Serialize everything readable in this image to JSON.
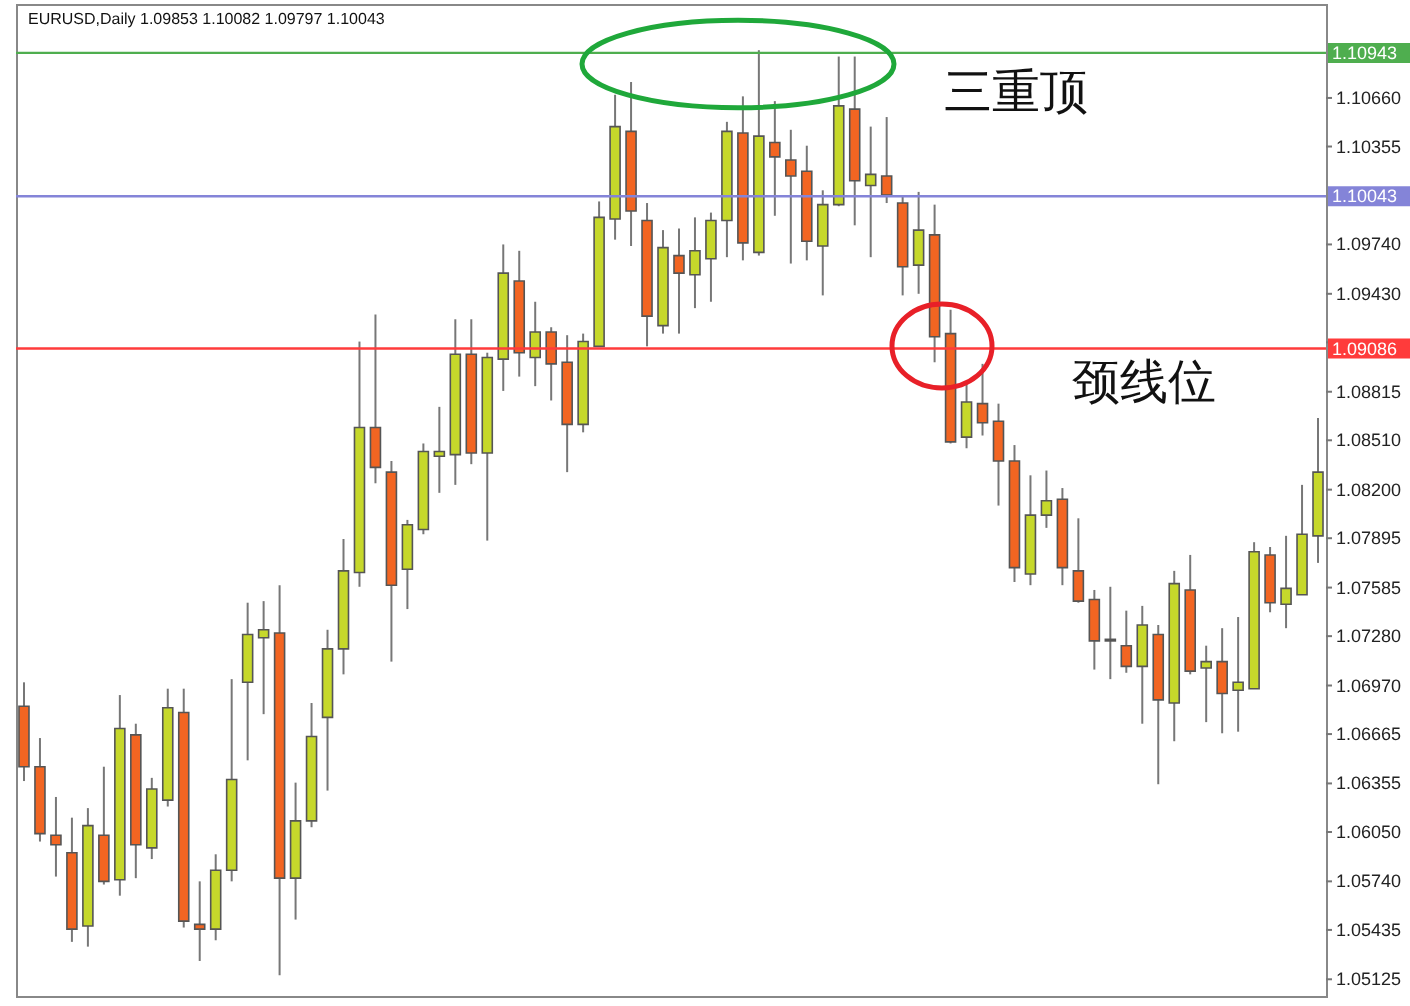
{
  "chart_data": {
    "type": "candlestick",
    "title": "EURUSD,Daily  1.09853 1.10082 1.09797 1.10043",
    "annotations": [
      "三重顶",
      "颈线位"
    ],
    "categories": [
      null,
      null,
      null,
      null,
      null,
      null,
      null,
      null,
      null,
      null,
      null,
      null,
      null,
      null,
      null,
      null,
      null,
      null,
      null,
      null,
      null,
      null,
      null,
      null,
      null,
      null,
      null,
      null,
      null,
      null,
      null,
      null,
      null,
      null,
      null,
      null,
      null,
      null,
      null,
      null,
      null,
      null,
      null,
      null,
      null,
      null,
      null,
      null,
      null,
      null,
      null,
      null,
      null,
      null,
      null,
      null,
      null,
      null,
      null,
      null,
      null,
      null,
      null,
      null,
      null,
      null,
      null,
      null,
      null,
      null,
      null,
      null,
      null,
      null,
      null,
      null,
      null,
      null,
      null,
      null,
      null,
      null
    ],
    "ohlc": [
      [
        1.0684,
        1.0699,
        1.0637,
        1.0646
      ],
      [
        1.0646,
        1.0664,
        1.0599,
        1.0604
      ],
      [
        1.0603,
        1.0627,
        1.0577,
        1.0597
      ],
      [
        1.0592,
        1.0614,
        1.0536,
        1.0544
      ],
      [
        1.0546,
        1.062,
        1.0533,
        1.0609
      ],
      [
        1.0603,
        1.0646,
        1.0572,
        1.0574
      ],
      [
        1.0575,
        1.0691,
        1.0565,
        1.067
      ],
      [
        1.0666,
        1.0673,
        1.0576,
        1.0597
      ],
      [
        1.0595,
        1.0639,
        1.0588,
        1.0632
      ],
      [
        1.0625,
        1.0695,
        1.0621,
        1.0683
      ],
      [
        1.068,
        1.0695,
        1.0545,
        1.0549
      ],
      [
        1.0547,
        1.0574,
        1.0524,
        1.0544
      ],
      [
        1.0544,
        1.0591,
        1.0537,
        1.0581
      ],
      [
        1.0581,
        1.0701,
        1.0574,
        1.0638
      ],
      [
        1.0699,
        1.0749,
        1.065,
        1.0729
      ],
      [
        1.0727,
        1.075,
        1.0679,
        1.0732
      ],
      [
        1.073,
        1.076,
        1.0515,
        1.0576
      ],
      [
        1.0576,
        1.0636,
        1.055,
        1.0612
      ],
      [
        1.0612,
        1.0686,
        1.0608,
        1.0665
      ],
      [
        1.0677,
        1.0732,
        1.0631,
        1.072
      ],
      [
        1.072,
        1.0789,
        1.0704,
        1.0769
      ],
      [
        1.0768,
        1.0913,
        1.0759,
        1.0859
      ],
      [
        1.0859,
        1.093,
        1.0824,
        1.0834
      ],
      [
        1.0831,
        1.0838,
        1.0712,
        1.076
      ],
      [
        1.077,
        1.0801,
        1.0745,
        1.0798
      ],
      [
        1.0795,
        1.0849,
        1.0792,
        1.0844
      ],
      [
        1.0841,
        1.0872,
        1.0818,
        1.0844
      ],
      [
        1.0842,
        1.0927,
        1.0823,
        1.0905
      ],
      [
        1.0905,
        1.0927,
        1.0836,
        1.0843
      ],
      [
        1.0843,
        1.0906,
        1.0788,
        1.0903
      ],
      [
        1.0902,
        1.0974,
        1.0882,
        1.0956
      ],
      [
        1.0951,
        1.097,
        1.0891,
        1.0906
      ],
      [
        1.0903,
        1.0938,
        1.0885,
        1.0919
      ],
      [
        1.0919,
        1.0922,
        1.0876,
        1.0899
      ],
      [
        1.09,
        1.0917,
        1.0831,
        1.0861
      ],
      [
        1.0861,
        1.0918,
        1.0856,
        1.0913
      ],
      [
        1.091,
        1.1001,
        1.091,
        1.0991
      ],
      [
        1.099,
        1.1068,
        1.0977,
        1.1048
      ],
      [
        1.1045,
        1.1076,
        1.0973,
        1.0995
      ],
      [
        1.0989,
        1.1,
        1.091,
        1.0929
      ],
      [
        1.0923,
        1.0983,
        1.0918,
        1.0972
      ],
      [
        1.0967,
        1.0984,
        1.0918,
        1.0956
      ],
      [
        1.0955,
        1.0991,
        1.0934,
        1.097
      ],
      [
        1.0965,
        1.0994,
        1.0938,
        1.0989
      ],
      [
        1.0989,
        1.1051,
        1.0966,
        1.1045
      ],
      [
        1.1044,
        1.1067,
        1.0964,
        1.0975
      ],
      [
        1.0969,
        1.1096,
        1.0967,
        1.1042
      ],
      [
        1.1038,
        1.1064,
        1.0992,
        1.1029
      ],
      [
        1.1027,
        1.1046,
        1.0962,
        1.1017
      ],
      [
        1.102,
        1.1036,
        1.0964,
        1.0976
      ],
      [
        1.0973,
        1.1008,
        1.0942,
        1.0999
      ],
      [
        1.0999,
        1.1092,
        1.0998,
        1.1061
      ],
      [
        1.1059,
        1.1092,
        1.0986,
        1.1014
      ],
      [
        1.1011,
        1.1048,
        1.0966,
        1.1018
      ],
      [
        1.1017,
        1.1054,
        1.1,
        1.1005
      ],
      [
        1.1,
        1.1005,
        1.0942,
        1.096
      ],
      [
        1.0961,
        1.1007,
        1.0943,
        1.0983
      ],
      [
        1.098,
        1.0999,
        1.09,
        1.0916
      ],
      [
        1.0918,
        1.0933,
        1.0849,
        1.085
      ],
      [
        1.0853,
        1.0887,
        1.0846,
        1.0875
      ],
      [
        1.0874,
        1.0899,
        1.0854,
        1.0862
      ],
      [
        1.0863,
        1.0874,
        1.081,
        1.0838
      ],
      [
        1.0838,
        1.0848,
        1.0762,
        1.0771
      ],
      [
        1.0767,
        1.0829,
        1.076,
        1.0804
      ],
      [
        1.0804,
        1.0832,
        1.0796,
        1.0813
      ],
      [
        1.0814,
        1.0821,
        1.076,
        1.0771
      ],
      [
        1.0769,
        1.0802,
        1.0749,
        1.075
      ],
      [
        1.0751,
        1.0757,
        1.0707,
        1.0725
      ],
      [
        1.0726,
        1.0759,
        1.0701,
        1.0725
      ],
      [
        1.0722,
        1.0744,
        1.0705,
        1.0709
      ],
      [
        1.0709,
        1.0747,
        1.0673,
        1.0735
      ],
      [
        1.0729,
        1.0735,
        1.0635,
        1.0688
      ],
      [
        1.0686,
        1.0769,
        1.0662,
        1.0761
      ],
      [
        1.0757,
        1.0779,
        1.0704,
        1.0706
      ],
      [
        1.0708,
        1.0722,
        1.0674,
        1.0712
      ],
      [
        1.0712,
        1.0733,
        1.0667,
        1.0692
      ],
      [
        1.0694,
        1.074,
        1.0668,
        1.0699
      ],
      [
        1.0695,
        1.0787,
        1.0695,
        1.0781
      ],
      [
        1.0779,
        1.0784,
        1.0743,
        1.0749
      ],
      [
        1.0748,
        1.0791,
        1.0733,
        1.0758
      ],
      [
        1.0754,
        1.0823,
        1.0754,
        1.0792
      ],
      [
        1.0791,
        1.0865,
        1.0774,
        1.0831
      ]
    ],
    "colors": [
      "#f26522",
      "#f26522",
      "#f26522",
      "#f26522",
      "#c6d82b",
      "#f26522",
      "#c6d82b",
      "#f26522",
      "#c6d82b",
      "#c6d82b",
      "#f26522",
      "#f26522",
      "#c6d82b",
      "#c6d82b",
      "#c6d82b",
      "#c6d82b",
      "#f26522",
      "#c6d82b",
      "#c6d82b",
      "#c6d82b",
      "#c6d82b",
      "#c6d82b",
      "#f26522",
      "#f26522",
      "#c6d82b",
      "#c6d82b",
      "#c6d82b",
      "#c6d82b",
      "#f26522",
      "#c6d82b",
      "#c6d82b",
      "#f26522",
      "#c6d82b",
      "#f26522",
      "#f26522",
      "#c6d82b",
      "#c6d82b",
      "#c6d82b",
      "#f26522",
      "#f26522",
      "#c6d82b",
      "#f26522",
      "#c6d82b",
      "#c6d82b",
      "#c6d82b",
      "#f26522",
      "#c6d82b",
      "#f26522",
      "#f26522",
      "#f26522",
      "#c6d82b",
      "#c6d82b",
      "#f26522",
      "#c6d82b",
      "#f26522",
      "#f26522",
      "#c6d82b",
      "#f26522",
      "#f26522",
      "#c6d82b",
      "#f26522",
      "#f26522",
      "#f26522",
      "#c6d82b",
      "#c6d82b",
      "#f26522",
      "#f26522",
      "#f26522",
      "#f26522",
      "#f26522",
      "#c6d82b",
      "#f26522",
      "#c6d82b",
      "#f26522",
      "#c6d82b",
      "#f26522",
      "#c6d82b",
      "#c6d82b",
      "#f26522",
      "#c6d82b",
      "#c6d82b",
      "#c6d82b"
    ],
    "ylim": [
      1.0502,
      1.1125
    ],
    "yticks": [
      {
        "value": 1.1066,
        "label": "1.10660"
      },
      {
        "value": 1.10355,
        "label": "1.10355"
      },
      {
        "value": 1.0974,
        "label": "1.09740"
      },
      {
        "value": 1.0943,
        "label": "1.09430"
      },
      {
        "value": 1.09125,
        "label": null
      },
      {
        "value": 1.08815,
        "label": "1.08815"
      },
      {
        "value": 1.0851,
        "label": "1.08510"
      },
      {
        "value": 1.082,
        "label": "1.08200"
      },
      {
        "value": 1.07895,
        "label": "1.07895"
      },
      {
        "value": 1.07585,
        "label": "1.07585"
      },
      {
        "value": 1.0728,
        "label": "1.07280"
      },
      {
        "value": 1.0697,
        "label": "1.06970"
      },
      {
        "value": 1.06665,
        "label": "1.06665"
      },
      {
        "value": 1.06355,
        "label": "1.06355"
      },
      {
        "value": 1.0605,
        "label": "1.06050"
      },
      {
        "value": 1.0574,
        "label": "1.05740"
      },
      {
        "value": 1.05435,
        "label": "1.05435"
      },
      {
        "value": 1.05125,
        "label": "1.05125"
      }
    ],
    "ref_lines": [
      {
        "axis": "y",
        "value": 1.10943,
        "label": "1.10943",
        "color": "#4fae4f"
      },
      {
        "axis": "y",
        "value": 1.10043,
        "label": "1.10043",
        "color": "#8484d8"
      },
      {
        "axis": "y",
        "value": 1.09086,
        "label": "1.09086",
        "color": "#ff3b3b"
      }
    ],
    "grid": false
  }
}
